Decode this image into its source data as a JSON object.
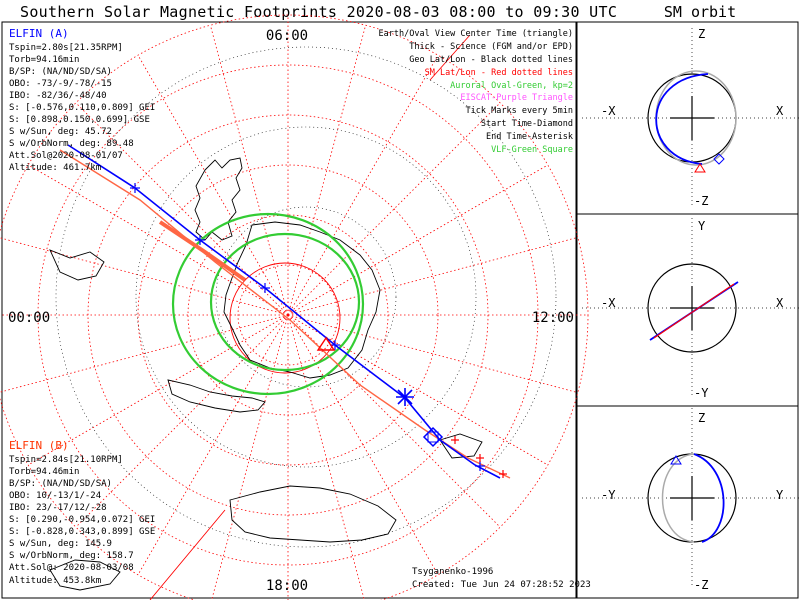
{
  "title": "Southern Solar Magnetic Footprints 2020-08-03 08:00 to 09:30 UTC",
  "orbit_title": "SM orbit",
  "colors": {
    "probe_a": "#0000ff",
    "probe_b": "#ff0000",
    "probe_b_track": "#ff6644",
    "auroral_oval": "#33cc33",
    "eiscat": "#ff55ff",
    "vlf": "#33cc33",
    "grid": "#ff0000",
    "coast": "#000000"
  },
  "map": {
    "top_time": "06:00",
    "bottom_time": "18:00",
    "left_time": "00:00",
    "right_time": "12:00"
  },
  "elfin_a": {
    "name": "ELFIN (A)",
    "lines": [
      "Tspin=2.80s[21.35RPM]",
      "Torb=94.16min",
      "B/SP: (NA/ND/SD/SA)",
      "OBO: -73/-9/-78/-15",
      "IBO: -82/36/-48/40",
      "S: [-0.576,0.110,0.809] GEI",
      "S: [0.898,0.150,0.699] GSE",
      "S w/Sun, deg: 45.72",
      "S w/OrbNorm, deg: 89.48",
      "Att.Sol@2020-08-01/07",
      "Altitude: 461.7km"
    ]
  },
  "elfin_b": {
    "name": "ELFIN (B)",
    "lines": [
      "Tspin=2.84s[21.10RPM]",
      "Torb=94.46min",
      "B/SP: (NA/ND/SD/SA)",
      "OBO: 10/-13/1/-24",
      "IBO: 23/-17/12/-28",
      "S: [0.290,-0.954,0.072] GEI",
      "S: [-0.828,0.343,0.899] GSE",
      "S w/Sun, deg: 145.9",
      "S w/OrbNorm, deg: 158.7",
      "Att.Sol@: 2020-08-03/08",
      "Altitude: 453.8km"
    ]
  },
  "legend": {
    "lines": [
      {
        "text": "Earth/Oval View Center Time (triangle)",
        "color": "#000000"
      },
      {
        "text": "Thick - Science (FGM and/or EPD)",
        "color": "#000000"
      },
      {
        "text": "Geo Lat/Lon - Black dotted lines",
        "color": "#000000"
      },
      {
        "text": "SM Lat/Lon - Red dotted lines",
        "color": "#ff0000"
      },
      {
        "text": "Auroral Oval-Green, kp=2",
        "color": "#33cc33"
      },
      {
        "text": "EISCAT-Purple Triangle",
        "color": "#ff55ff"
      },
      {
        "text": "Tick Marks every 5min",
        "color": "#000000"
      },
      {
        "text": "Start Time-Diamond",
        "color": "#000000"
      },
      {
        "text": "End Time-Asterisk",
        "color": "#000000"
      },
      {
        "text": "VLF-Green Square",
        "color": "#33cc33"
      }
    ]
  },
  "credits": {
    "author": "Tsyganenko-1996",
    "created": "Created: Tue Jun 24 07:28:52 2023"
  },
  "orbit_panels": [
    {
      "top": "Z",
      "bottom": "-Z",
      "left": "-X",
      "right": "X"
    },
    {
      "top": "Y",
      "bottom": "-Y",
      "left": "-X",
      "right": "X"
    },
    {
      "top": "Z",
      "bottom": "-Z",
      "left": "-Y",
      "right": "Y"
    }
  ]
}
